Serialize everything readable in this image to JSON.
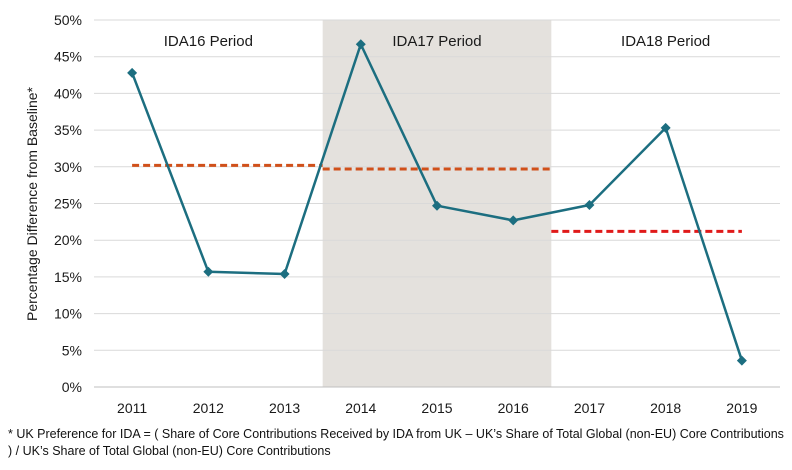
{
  "chart_data": {
    "type": "line",
    "title": "",
    "xlabel": "",
    "ylabel": "Percentage Difference from Baseline*",
    "ylim": [
      0,
      50
    ],
    "yticks": [
      "0%",
      "5%",
      "10%",
      "15%",
      "20%",
      "25%",
      "30%",
      "35%",
      "40%",
      "45%",
      "50%"
    ],
    "categories": [
      "2011",
      "2012",
      "2013",
      "2014",
      "2015",
      "2016",
      "2017",
      "2018",
      "2019"
    ],
    "series": [
      {
        "name": "",
        "values": [
          42.8,
          15.7,
          15.4,
          46.7,
          24.7,
          22.7,
          24.8,
          35.3,
          3.6
        ],
        "color": "#1c6e80",
        "marker": "diamond"
      }
    ],
    "periods": [
      {
        "label": "IDA16 Period",
        "x_start": "2011",
        "x_end": "2014",
        "average": 30.2,
        "shaded": false,
        "avg_color": "#d0501a"
      },
      {
        "label": "IDA17 Period",
        "x_start": "2014",
        "x_end": "2017",
        "average": 29.7,
        "shaded": true,
        "avg_color": "#d0501a"
      },
      {
        "label": "IDA18 Period",
        "x_start": "2017",
        "x_end": "2019",
        "average": 21.2,
        "shaded": false,
        "avg_color": "#e01a1a"
      }
    ],
    "shade_color": "#e4e1dd",
    "grid": true,
    "legend": "none"
  },
  "footnote": "* UK Preference for IDA = ( Share of Core Contributions Received by IDA from UK – UK’s Share of Total Global (non-EU) Core Contributions ) / UK’s Share of Total Global (non-EU) Core Contributions"
}
